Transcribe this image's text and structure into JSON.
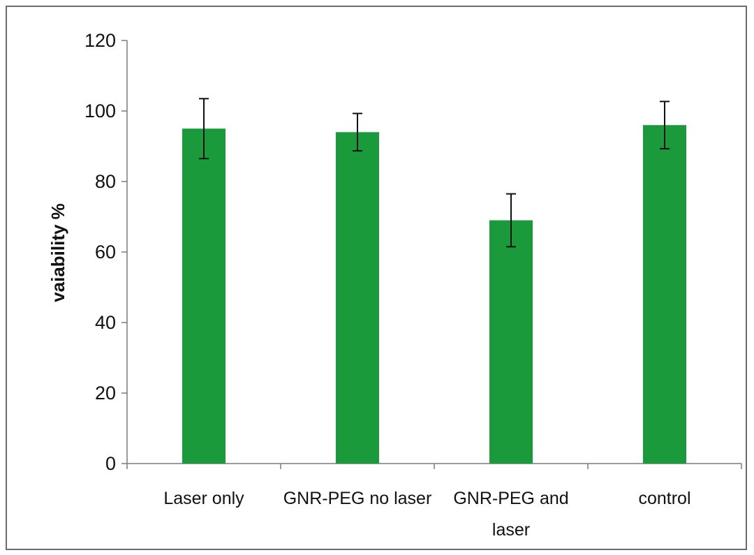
{
  "chart_data": {
    "type": "bar",
    "title": "",
    "xlabel": "",
    "ylabel": "vaiability %",
    "ylim": [
      0,
      120
    ],
    "yticks": [
      0,
      20,
      40,
      60,
      80,
      100,
      120
    ],
    "grid": false,
    "legend": "none",
    "categories": [
      [
        "Laser only"
      ],
      [
        "GNR-PEG no laser"
      ],
      [
        "GNR-PEG and",
        "laser"
      ],
      [
        "control"
      ]
    ],
    "series": [
      {
        "values": [
          95,
          94,
          69,
          96
        ],
        "error": [
          8.5,
          5.3,
          7.5,
          6.7
        ],
        "color": "#1a9a3a"
      }
    ]
  }
}
